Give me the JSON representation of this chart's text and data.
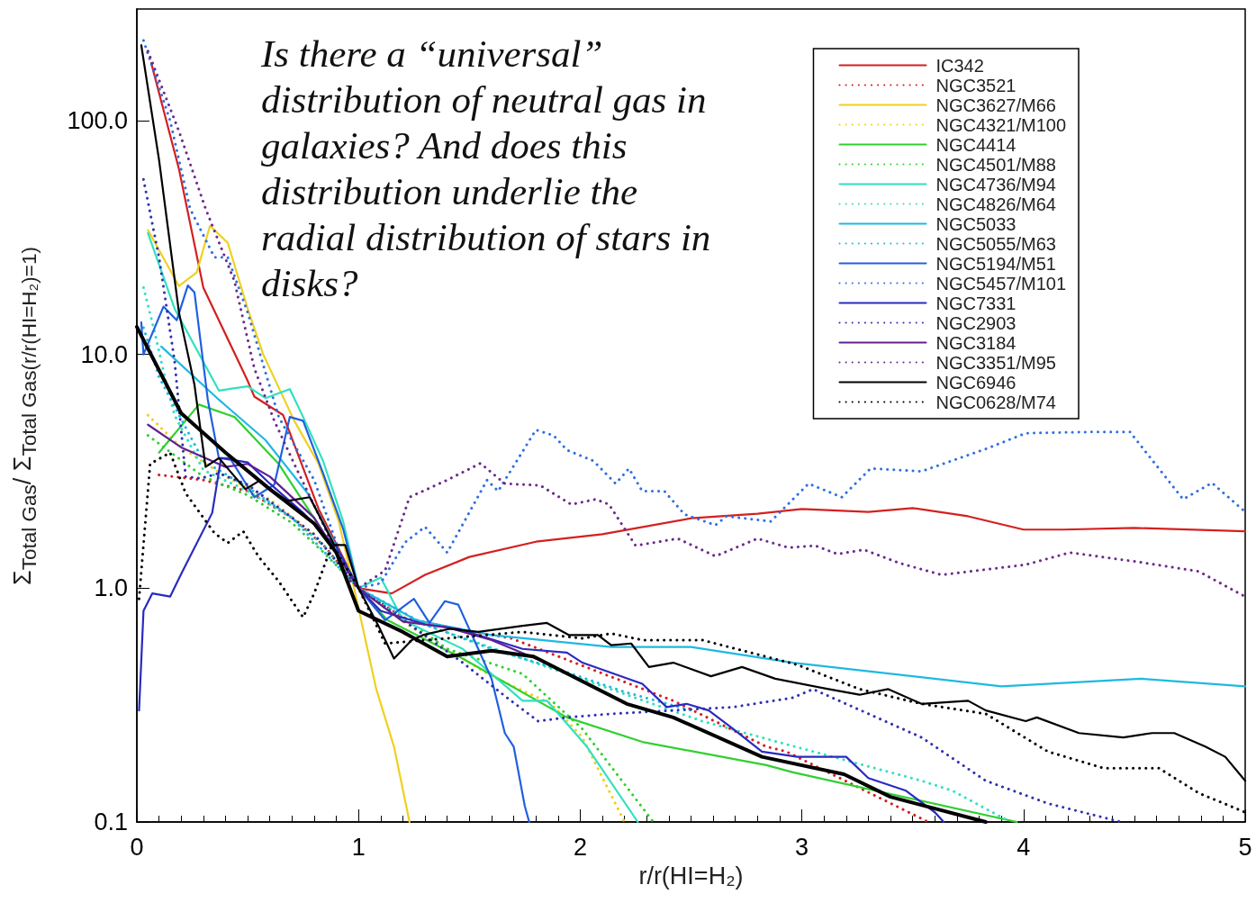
{
  "chart_data": {
    "type": "line",
    "xlabel": "r/r(HI=H₂)",
    "ylabel": "Σ$_{Total Gas}$/ Σ$_{Total Gas(r/r(HI=H₂)=1)}$",
    "annotations": [
      "Is there a “universal” distribution of neutral gas in galaxies? And does this distribution underlie the radial distribution of stars in disks?"
    ],
    "xlim": [
      0,
      5
    ],
    "xticks": [
      0,
      1,
      2,
      3,
      4,
      5
    ],
    "ylim": [
      0.1,
      300
    ],
    "yticks": [
      0.1,
      {
        "value": 1,
        "label": "1.0"
      },
      {
        "value": 10,
        "label": "10.0"
      },
      {
        "value": 100,
        "label": "100.0"
      }
    ],
    "log": "y",
    "grid": false,
    "legend": "top right",
    "series": [
      {
        "name": "IC342",
        "color": "#d42020",
        "line_style": "solid",
        "x": [
          0.065,
          0.19,
          0.3,
          0.5,
          0.53,
          0.66,
          0.82,
          1.0,
          1.15,
          1.3,
          1.5,
          1.8,
          2.1,
          2.5,
          2.8,
          3.0,
          3.3,
          3.5,
          3.75,
          4.0,
          4.18,
          4.5,
          5.0
        ],
        "values": [
          176,
          62,
          19.3,
          7.7,
          6.6,
          5.5,
          2.18,
          1.0,
          0.95,
          1.14,
          1.36,
          1.58,
          1.7,
          1.99,
          2.08,
          2.18,
          2.12,
          2.2,
          2.03,
          1.78,
          1.78,
          1.81,
          1.75
        ]
      },
      {
        "name": "NGC3521",
        "color": "#d42020",
        "line_style": "dotted",
        "x": [
          0.1,
          0.3,
          0.5,
          0.7,
          0.85,
          1.0,
          1.2,
          1.4,
          1.69,
          2.42,
          2.84,
          2.93,
          3.57
        ],
        "values": [
          3.05,
          2.9,
          2.6,
          2.0,
          1.5,
          1.0,
          0.75,
          0.68,
          0.61,
          0.33,
          0.21,
          0.2,
          0.1
        ]
      },
      {
        "name": "NGC3627/M66",
        "color": "#f0d020",
        "line_style": "solid",
        "x": [
          0.05,
          0.19,
          0.27,
          0.33,
          0.41,
          0.5,
          0.57,
          0.71,
          0.82,
          0.91,
          0.98,
          1.08,
          1.16,
          1.23
        ],
        "values": [
          34,
          19.6,
          22.4,
          35.5,
          30,
          15.7,
          10,
          5.2,
          3.4,
          1.94,
          1.0,
          0.37,
          0.21,
          0.1
        ]
      },
      {
        "name": "NGC4321/M100",
        "color": "#f0d020",
        "line_style": "dotted",
        "x": [
          0.05,
          0.2,
          0.4,
          0.6,
          0.8,
          1.0,
          1.2,
          1.4,
          1.6,
          1.87,
          2.01,
          2.2
        ],
        "values": [
          5.5,
          4,
          3.0,
          2.4,
          1.7,
          1.0,
          0.72,
          0.55,
          0.42,
          0.32,
          0.23,
          0.1
        ]
      },
      {
        "name": "NGC4414",
        "color": "#30d030",
        "line_style": "solid",
        "x": [
          0.1,
          0.28,
          0.44,
          0.64,
          0.82,
          1.0,
          1.13,
          1.47,
          1.94,
          2.28,
          2.84,
          2.96,
          3.97
        ],
        "values": [
          3.8,
          6.1,
          5.4,
          3.4,
          1.86,
          1.0,
          0.73,
          0.5,
          0.28,
          0.22,
          0.175,
          0.163,
          0.1
        ]
      },
      {
        "name": "NGC4501/M88",
        "color": "#30d030",
        "line_style": "dotted",
        "x": [
          0.05,
          0.3,
          0.5,
          0.7,
          0.85,
          1.0,
          1.2,
          1.4,
          1.74,
          2.01,
          2.33
        ],
        "values": [
          4.5,
          3.0,
          2.5,
          1.9,
          1.4,
          1.0,
          0.75,
          0.55,
          0.43,
          0.25,
          0.1
        ]
      },
      {
        "name": "NGC4736/M94",
        "color": "#30e0c0",
        "line_style": "solid",
        "x": [
          0.05,
          0.17,
          0.37,
          0.5,
          0.58,
          0.69,
          0.75,
          0.84,
          0.93,
          1.0,
          1.1,
          1.2,
          1.47,
          1.74,
          1.85,
          2.03,
          2.26
        ],
        "values": [
          33,
          15.7,
          7.0,
          7.3,
          6.5,
          7.1,
          5.4,
          3.5,
          1.94,
          1.0,
          1.11,
          0.73,
          0.55,
          0.33,
          0.33,
          0.21,
          0.1
        ]
      },
      {
        "name": "NGC4826/M64",
        "color": "#30e0c0",
        "line_style": "dotted",
        "x": [
          0.03,
          0.08,
          0.13,
          0.17,
          0.3,
          0.5,
          0.7,
          0.85,
          1.0,
          1.2,
          1.5,
          1.94,
          2.55,
          2.89,
          3.54,
          3.68,
          3.94
        ],
        "values": [
          19.3,
          12.5,
          7.7,
          5.5,
          3.2,
          2.6,
          2.0,
          1.5,
          1.0,
          0.75,
          0.6,
          0.43,
          0.27,
          0.22,
          0.15,
          0.136,
          0.1
        ]
      },
      {
        "name": "NGC5033",
        "color": "#20b8e0",
        "line_style": "solid",
        "x": [
          0.11,
          0.37,
          0.58,
          0.77,
          1.0,
          1.26,
          1.6,
          2.14,
          2.5,
          2.96,
          3.9,
          4.53,
          5.0
        ],
        "values": [
          10.8,
          6.4,
          4.3,
          2.55,
          1.0,
          0.73,
          0.63,
          0.56,
          0.56,
          0.48,
          0.38,
          0.41,
          0.38
        ]
      },
      {
        "name": "NGC5055/M63",
        "color": "#20b8e0",
        "line_style": "dotted",
        "x": [
          0.03,
          0.1,
          0.3,
          0.5,
          0.7,
          1.0,
          1.3,
          1.6,
          1.9,
          2.2,
          2.5
        ],
        "values": [
          13,
          8,
          3.5,
          2.7,
          2.0,
          1.0,
          0.7,
          0.55,
          0.45,
          0.36,
          0.3
        ]
      },
      {
        "name": "NGC5194/M51",
        "color": "#2060e0",
        "line_style": "solid",
        "x": [
          0.02,
          0.03,
          0.12,
          0.18,
          0.23,
          0.26,
          0.32,
          0.37,
          0.42,
          0.53,
          0.62,
          0.69,
          0.75,
          0.84,
          0.93,
          1.0,
          1.12,
          1.25,
          1.32,
          1.39,
          1.45,
          1.54,
          1.6,
          1.66,
          1.7,
          1.75,
          1.77
        ],
        "values": [
          13.7,
          10,
          16,
          14,
          19.7,
          18.4,
          6.4,
          3.6,
          3.6,
          2.45,
          2.77,
          5.4,
          5.2,
          3.1,
          1.8,
          1.0,
          0.73,
          0.9,
          0.71,
          0.88,
          0.85,
          0.55,
          0.41,
          0.24,
          0.21,
          0.117,
          0.1
        ]
      },
      {
        "name": "NGC5457/M101",
        "color": "#3070e0",
        "line_style": "dotted",
        "x": [
          0.03,
          0.15,
          0.24,
          0.35,
          0.41,
          0.5,
          0.64,
          0.8,
          0.93,
          1.0,
          1.1,
          1.21,
          1.3,
          1.4,
          1.58,
          1.63,
          1.8,
          1.88,
          1.94,
          2.06,
          2.16,
          2.22,
          2.28,
          2.38,
          2.47,
          2.61,
          2.66,
          2.86,
          3.03,
          3.18,
          3.31,
          3.54,
          3.83,
          4.01,
          4.32,
          4.48,
          4.72,
          4.85,
          5.0
        ],
        "values": [
          220,
          100,
          42,
          26,
          26,
          15.1,
          5.4,
          2.9,
          1.3,
          1.0,
          1.05,
          1.57,
          1.83,
          1.42,
          2.9,
          2.6,
          4.75,
          4.5,
          3.9,
          3.5,
          2.8,
          3.25,
          2.6,
          2.6,
          2.07,
          1.86,
          2.03,
          1.93,
          2.8,
          2.45,
          3.25,
          3.16,
          3.94,
          4.6,
          4.66,
          4.66,
          2.4,
          2.82,
          2.12
        ]
      },
      {
        "name": "NGC7331",
        "color": "#2a2ac0",
        "line_style": "solid",
        "x": [
          0.01,
          0.03,
          0.07,
          0.15,
          0.2,
          0.34,
          0.38,
          0.5,
          0.6,
          0.75,
          0.9,
          1.0,
          1.1,
          1.3,
          1.45,
          1.74,
          1.94,
          2.01,
          2.28,
          2.39,
          2.48,
          2.58,
          2.69,
          2.82,
          2.98,
          3.2,
          3.3,
          3.47,
          3.6,
          3.64
        ],
        "values": [
          0.3,
          0.8,
          0.95,
          0.92,
          1.15,
          2.1,
          3.6,
          3.45,
          2.8,
          2.1,
          1.5,
          1.0,
          0.8,
          0.7,
          0.67,
          0.55,
          0.53,
          0.48,
          0.39,
          0.31,
          0.32,
          0.3,
          0.25,
          0.2,
          0.19,
          0.19,
          0.154,
          0.136,
          0.11,
          0.1
        ]
      },
      {
        "name": "NGC2903",
        "color": "#3030b0",
        "line_style": "dotted",
        "x": [
          0.03,
          0.1,
          0.17,
          0.22,
          0.29,
          0.37,
          0.5,
          0.8,
          1.0,
          1.47,
          1.67,
          1.81,
          1.94,
          2.14,
          2.42,
          2.69,
          2.96,
          3.05,
          3.54,
          3.83,
          4.11,
          4.44
        ],
        "values": [
          56,
          26,
          9.4,
          3.0,
          2.95,
          3.1,
          2.77,
          1.7,
          1.0,
          0.48,
          0.34,
          0.27,
          0.28,
          0.29,
          0.3,
          0.31,
          0.34,
          0.37,
          0.23,
          0.15,
          0.12,
          0.1
        ]
      },
      {
        "name": "NGC3184",
        "color": "#602090",
        "line_style": "solid",
        "x": [
          0.05,
          0.2,
          0.4,
          0.5,
          0.6,
          0.8,
          1.0,
          1.2,
          1.4,
          1.6,
          1.8
        ],
        "values": [
          5,
          4.0,
          3.3,
          3.4,
          3.0,
          2.0,
          1.0,
          0.72,
          0.68,
          0.6,
          0.5
        ]
      },
      {
        "name": "NGC3351/M95",
        "color": "#6a2a8a",
        "line_style": "dotted",
        "x": [
          0.05,
          0.19,
          0.31,
          0.44,
          0.53,
          0.62,
          0.71,
          0.85,
          0.95,
          1.0,
          1.12,
          1.23,
          1.4,
          1.55,
          1.66,
          1.82,
          1.96,
          2.07,
          2.13,
          2.25,
          2.44,
          2.61,
          2.8,
          2.94,
          3.06,
          3.16,
          3.28,
          3.44,
          3.63,
          4.01,
          4.21,
          4.53,
          4.79,
          5.0
        ],
        "values": [
          198,
          90,
          42,
          20.6,
          8.7,
          5.2,
          3.4,
          1.8,
          1.1,
          1.0,
          1.19,
          2.45,
          2.9,
          3.42,
          2.8,
          2.75,
          2.28,
          2.4,
          2.28,
          1.52,
          1.63,
          1.37,
          1.63,
          1.49,
          1.52,
          1.4,
          1.46,
          1.28,
          1.14,
          1.26,
          1.42,
          1.29,
          1.18,
          0.92
        ]
      },
      {
        "name": "NGC6946",
        "color": "#000000",
        "line_style": "solid",
        "x": [
          0.02,
          0.1,
          0.19,
          0.26,
          0.31,
          0.37,
          0.49,
          0.55,
          0.68,
          0.78,
          0.89,
          0.94,
          1.0,
          1.09,
          1.16,
          1.24,
          1.29,
          1.41,
          1.54,
          1.74,
          1.85,
          1.95,
          2.08,
          2.14,
          2.23,
          2.31,
          2.42,
          2.59,
          2.73,
          2.88,
          3.12,
          3.26,
          3.39,
          3.54,
          3.75,
          3.83,
          4.01,
          4.06,
          4.25,
          4.45,
          4.58,
          4.68,
          4.82,
          4.91,
          5.0
        ],
        "values": [
          210,
          68,
          15.1,
          7.4,
          3.3,
          3.6,
          2.65,
          2.87,
          2.36,
          2.45,
          1.53,
          1.53,
          1.0,
          0.69,
          0.5,
          0.6,
          0.63,
          0.67,
          0.65,
          0.69,
          0.71,
          0.63,
          0.63,
          0.57,
          0.58,
          0.46,
          0.48,
          0.42,
          0.46,
          0.41,
          0.37,
          0.35,
          0.37,
          0.32,
          0.33,
          0.3,
          0.27,
          0.28,
          0.24,
          0.23,
          0.24,
          0.24,
          0.21,
          0.19,
          0.15
        ]
      },
      {
        "name": "NGC0628/M74",
        "color": "#000000",
        "line_style": "dotted",
        "x": [
          0.01,
          0.06,
          0.15,
          0.22,
          0.35,
          0.41,
          0.48,
          0.55,
          0.64,
          0.75,
          0.8,
          0.88,
          0.95,
          1.0,
          1.12,
          1.4,
          1.74,
          2.01,
          2.14,
          2.28,
          2.55,
          2.98,
          3.26,
          3.54,
          3.83,
          4.11,
          4.36,
          4.61,
          4.79,
          5.0
        ],
        "values": [
          0.9,
          3.4,
          3.8,
          2.55,
          1.72,
          1.56,
          1.75,
          1.36,
          1.07,
          0.75,
          0.95,
          1.53,
          1.2,
          1.0,
          0.58,
          0.61,
          0.65,
          0.61,
          0.64,
          0.6,
          0.6,
          0.47,
          0.37,
          0.32,
          0.29,
          0.2,
          0.17,
          0.17,
          0.133,
          0.11
        ]
      },
      {
        "color": "#000000",
        "line_style": "solid",
        "x": [
          0.0,
          0.2,
          0.4,
          0.6,
          0.8,
          0.9,
          1.0,
          1.2,
          1.4,
          1.6,
          1.79,
          2.21,
          2.42,
          2.82,
          3.19,
          3.4,
          3.83
        ],
        "values": [
          13.1,
          5.6,
          3.8,
          2.65,
          1.89,
          1.42,
          0.8,
          0.65,
          0.51,
          0.54,
          0.51,
          0.32,
          0.28,
          0.19,
          0.16,
          0.128,
          0.1
        ]
      }
    ]
  }
}
